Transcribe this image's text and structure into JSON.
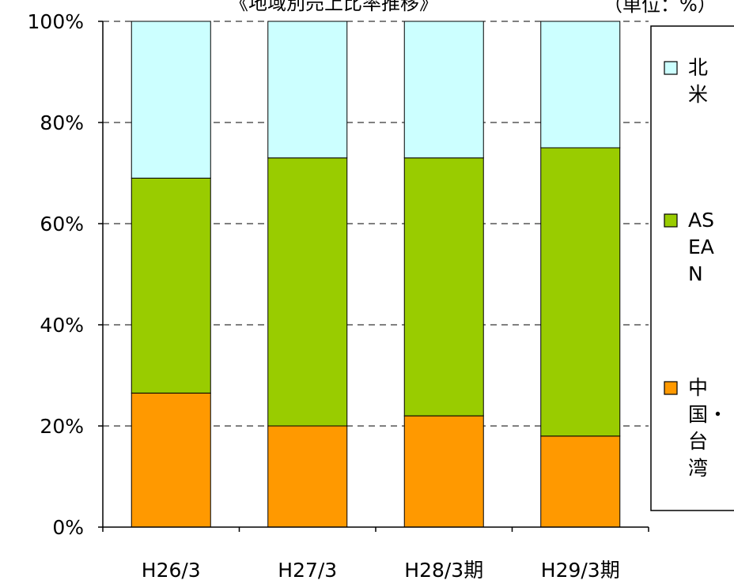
{
  "chart_data": {
    "type": "bar",
    "stacked": true,
    "percent": true,
    "title": "《地域別売上比率推移》",
    "unit_note": "（単位：%）",
    "categories": [
      "H26/3",
      "H27/3",
      "H28/3期",
      "H29/3期"
    ],
    "series": [
      {
        "name": "中国・台湾",
        "values": [
          26.5,
          20.0,
          22.0,
          18.0
        ],
        "color": "#FF9900"
      },
      {
        "name": "ASEAN",
        "values": [
          42.5,
          53.0,
          51.0,
          57.0
        ],
        "color": "#99CC00"
      },
      {
        "name": "北米",
        "values": [
          31.0,
          27.0,
          27.0,
          25.0
        ],
        "color": "#CCFFFF"
      }
    ],
    "ylim": [
      0,
      100
    ],
    "yticks": [
      "0%",
      "20%",
      "40%",
      "60%",
      "80%",
      "100%"
    ],
    "grid": true,
    "legend_position": "right"
  }
}
